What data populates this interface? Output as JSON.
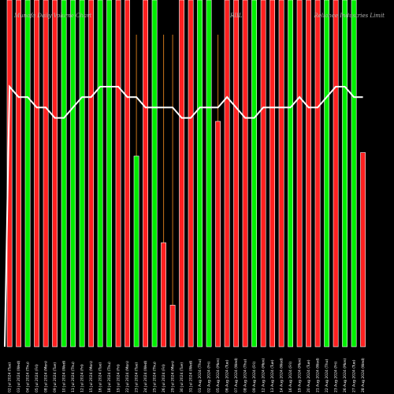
{
  "chart_data": {
    "type": "bar",
    "header": {
      "left": "Munafa Daily Volume Chart",
      "center": "RIIL",
      "right": "Reliance Industries Limit"
    },
    "colors": {
      "up": "#00ee00",
      "down": "#ff2020",
      "line": "#ffffff",
      "background": "#000000",
      "spike": "#c8741a"
    },
    "categories": [
      "02 Jul",
      "03 Jul",
      "04 Jul",
      "05 Jul",
      "08 Jul",
      "09 Jul",
      "10 Jul",
      "11 Jul",
      "12 Jul",
      "15 Jul",
      "16 Jul",
      "18 Jul",
      "19 Jul",
      "22 Jul",
      "23 Jul",
      "24 Jul",
      "25 Jul",
      "26 Jul",
      "29 Jul",
      "30 Jul",
      "31 Jul",
      "01 Aug",
      "02 Aug",
      "05 Aug",
      "06 Aug",
      "07 Aug",
      "08 Aug",
      "09 Aug",
      "12 Aug",
      "13 Aug",
      "14 Aug",
      "16 Aug",
      "19 Aug",
      "20 Aug",
      "21 Aug",
      "22 Aug",
      "23 Aug",
      "26 Aug",
      "27 Aug",
      "28 Aug"
    ],
    "tick_labels": [
      "02 Jul 2024 (Tue)",
      "03 Jul 2024 (Wed)",
      "04 Jul 2024 (Thu)",
      "05 Jul 2024 (Fri)",
      "08 Jul 2024 (Mon)",
      "09 Jul 2024 (Tue)",
      "10 Jul 2024 (Wed)",
      "11 Jul 2024 (Thu)",
      "12 Jul 2024 (Fri)",
      "15 Jul 2024 (Mon)",
      "16 Jul 2024 (Tue)",
      "18 Jul 2024 (Thu)",
      "19 Jul 2024 (Fri)",
      "22 Jul 2024 (Mon)",
      "23 Jul 2024 (Tue)",
      "24 Jul 2024 (Wed)",
      "25 Jul 2024 (Thu)",
      "26 Jul 2024 (Fri)",
      "29 Jul 2024 (Mon)",
      "30 Jul 2024 (Tue)",
      "31 Jul 2024 (Wed)",
      "01 Aug 2024 (Thu)",
      "02 Aug 2024 (Fri)",
      "05 Aug 2024 (Mon)",
      "06 Aug 2024 (Tue)",
      "07 Aug 2024 (Wed)",
      "08 Aug 2024 (Thu)",
      "09 Aug 2024 (Fri)",
      "12 Aug 2024 (Mon)",
      "13 Aug 2024 (Tue)",
      "14 Aug 2024 (Wed)",
      "16 Aug 2024 (Fri)",
      "19 Aug 2024 (Mon)",
      "20 Aug 2024 (Tue)",
      "21 Aug 2024 (Wed)",
      "22 Aug 2024 (Thu)",
      "23 Aug 2024 (Fri)",
      "26 Aug 2024 (Mon)",
      "27 Aug 2024 (Tue)",
      "28 Aug 2024 (Wed)"
    ],
    "bar_colors": [
      "down",
      "down",
      "up",
      "down",
      "down",
      "down",
      "up",
      "up",
      "up",
      "down",
      "up",
      "up",
      "down",
      "down",
      "up",
      "down",
      "up",
      "down",
      "down",
      "down",
      "down",
      "up",
      "up",
      "down",
      "down",
      "down",
      "down",
      "up",
      "down",
      "down",
      "down",
      "up",
      "down",
      "down",
      "down",
      "up",
      "down",
      "up",
      "up",
      "down"
    ],
    "volume": [
      100,
      100,
      100,
      100,
      100,
      100,
      100,
      100,
      100,
      100,
      100,
      100,
      100,
      100,
      55,
      100,
      100,
      30,
      12,
      100,
      100,
      100,
      100,
      65,
      100,
      100,
      100,
      100,
      100,
      100,
      100,
      100,
      100,
      100,
      100,
      100,
      100,
      100,
      100,
      56
    ],
    "spike": [
      0,
      0,
      0,
      0,
      0,
      0,
      0,
      0,
      0,
      0,
      0,
      0,
      0,
      0,
      90,
      0,
      0,
      90,
      90,
      0,
      0,
      0,
      0,
      90,
      0,
      0,
      0,
      0,
      0,
      0,
      0,
      0,
      0,
      0,
      0,
      0,
      0,
      0,
      0,
      0
    ],
    "line": [
      75,
      72,
      72,
      69,
      69,
      66,
      66,
      69,
      72,
      72,
      75,
      75,
      75,
      72,
      72,
      69,
      69,
      69,
      69,
      66,
      66,
      69,
      69,
      69,
      72,
      69,
      66,
      66,
      69,
      69,
      69,
      69,
      72,
      69,
      69,
      72,
      75,
      75,
      72,
      72
    ],
    "ylim": [
      0,
      100
    ]
  }
}
